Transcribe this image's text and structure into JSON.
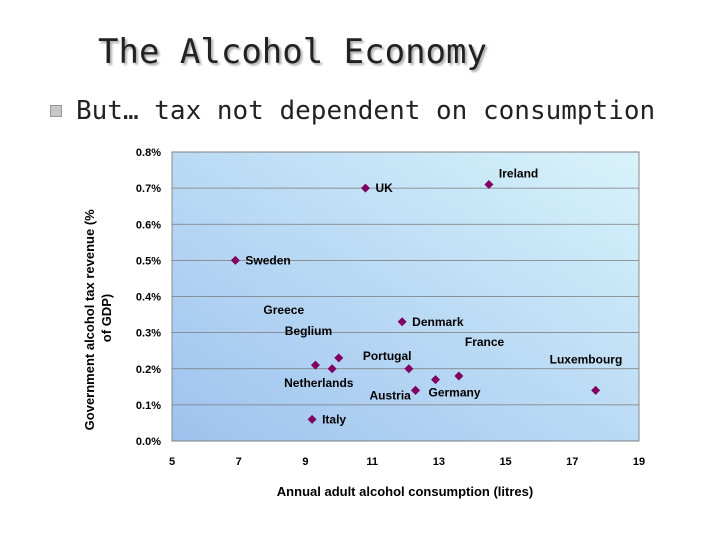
{
  "slide": {
    "title": "The Alcohol Economy",
    "bullet": "But… tax not dependent on consumption"
  },
  "chart_data": {
    "type": "scatter",
    "title": "",
    "xlabel": "Annual adult alcohol consumption (litres)",
    "ylabel_lines": [
      "Government alcohol tax revenue (%",
      "of GDP)"
    ],
    "xlim": [
      5,
      19
    ],
    "ylim": [
      0,
      0.8
    ],
    "x_ticks": [
      "5",
      "7",
      "9",
      "11",
      "13",
      "15",
      "17",
      "19"
    ],
    "y_ticks": [
      "0.0%",
      "0.1%",
      "0.2%",
      "0.3%",
      "0.4%",
      "0.5%",
      "0.6%",
      "0.7%",
      "0.8%"
    ],
    "grid": true,
    "marker_color": "#800060",
    "plot_gradient": [
      "#9ec2ee",
      "#d8f3fb"
    ],
    "points": [
      {
        "label": "Ireland",
        "x": 14.5,
        "y": 0.71
      },
      {
        "label": "UK",
        "x": 10.8,
        "y": 0.7
      },
      {
        "label": "Sweden",
        "x": 6.9,
        "y": 0.5
      },
      {
        "label": "Denmark",
        "x": 11.9,
        "y": 0.33
      },
      {
        "label": "Beglium",
        "x": 10.0,
        "y": 0.23
      },
      {
        "label": "Greece",
        "x": 9.3,
        "y": 0.21
      },
      {
        "label": "Netherlands",
        "x": 9.8,
        "y": 0.2
      },
      {
        "label": "Portugal",
        "x": 12.1,
        "y": 0.2
      },
      {
        "label": "France",
        "x": 13.6,
        "y": 0.18
      },
      {
        "label": "",
        "x": 12.9,
        "y": 0.17
      },
      {
        "label": "Austria",
        "x": 12.3,
        "y": 0.14
      },
      {
        "label": "Germany",
        "x": 12.3,
        "y": 0.14
      },
      {
        "label": "Luxembourg",
        "x": 17.7,
        "y": 0.14
      },
      {
        "label": "Italy",
        "x": 9.2,
        "y": 0.06
      }
    ]
  }
}
